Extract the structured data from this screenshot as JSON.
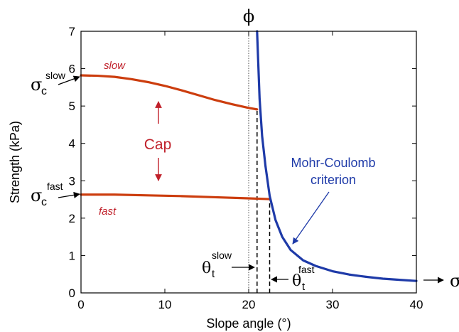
{
  "chart_data": {
    "type": "line",
    "xlabel": "Slope angle (°)",
    "ylabel": "Strength (kPa)",
    "xlim": [
      0,
      40
    ],
    "ylim": [
      0,
      7
    ],
    "xticks": [
      0,
      10,
      20,
      30,
      40
    ],
    "yticks": [
      0,
      1,
      2,
      3,
      4,
      5,
      6,
      7
    ],
    "grid": false,
    "colors": {
      "cap": "#cc3d0e",
      "mohr": "#1e3aa8",
      "annotation_red": "#c0202a",
      "annotation_blue": "#1e3aa8"
    },
    "series": [
      {
        "name": "slow",
        "x": [
          0,
          2,
          4,
          6,
          8,
          10,
          12,
          14,
          16,
          18,
          20,
          21
        ],
        "y": [
          5.82,
          5.81,
          5.78,
          5.72,
          5.64,
          5.54,
          5.42,
          5.29,
          5.16,
          5.05,
          4.95,
          4.91
        ]
      },
      {
        "name": "fast",
        "x": [
          0,
          4,
          8,
          12,
          16,
          20,
          22.5
        ],
        "y": [
          2.63,
          2.63,
          2.61,
          2.59,
          2.56,
          2.53,
          2.51
        ]
      },
      {
        "name": "Mohr-Coulomb criterion",
        "x": [
          21.0,
          21.3,
          21.6,
          22.0,
          22.5,
          23.2,
          24,
          25,
          26.5,
          28,
          30,
          32,
          34,
          36,
          38,
          40
        ],
        "y": [
          7.0,
          5.2,
          4.2,
          3.4,
          2.6,
          1.95,
          1.5,
          1.15,
          0.87,
          0.72,
          0.58,
          0.49,
          0.43,
          0.38,
          0.35,
          0.32
        ]
      }
    ],
    "vlines": [
      {
        "x": 20.0,
        "style": "dotted"
      },
      {
        "x": 21.0,
        "style": "dashed",
        "y_top": 4.91
      },
      {
        "x": 22.5,
        "style": "dashed",
        "y_top": 2.51
      }
    ],
    "annotations": {
      "phi": "ϕ",
      "sigma": "σ",
      "theta": "θ",
      "sub_c": "c",
      "sub_t": "t",
      "slow": "slow",
      "fast": "fast",
      "cap": "Cap",
      "mohr_line1": "Mohr-Coulomb",
      "mohr_line2": "criterion",
      "sigma_t_cut": "σ"
    }
  }
}
